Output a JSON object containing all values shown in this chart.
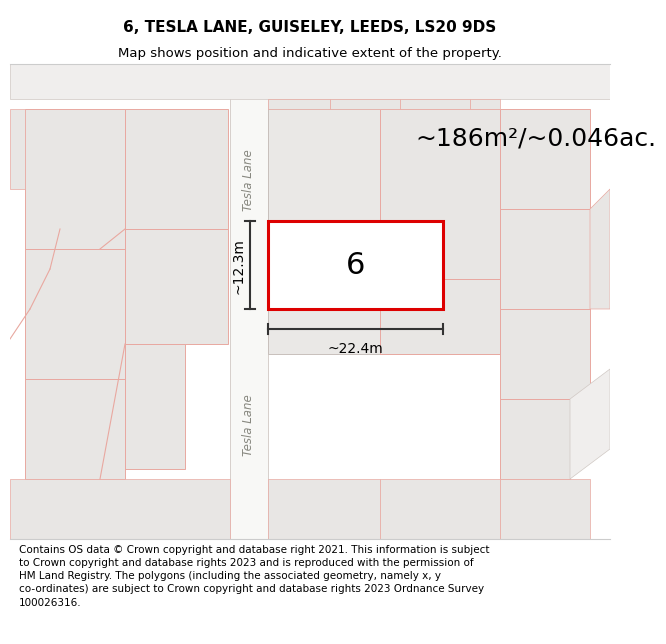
{
  "title_line1": "6, TESLA LANE, GUISELEY, LEEDS, LS20 9DS",
  "title_line2": "Map shows position and indicative extent of the property.",
  "area_label": "~186m²/~0.046ac.",
  "number_label": "6",
  "dim_width": "~22.4m",
  "dim_height": "~12.3m",
  "road_label_top": "Tesla Lane",
  "road_label_bottom": "Tesla Lane",
  "copyright_text": "Contains OS data © Crown copyright and database right 2021. This information is subject\nto Crown copyright and database rights 2023 and is reproduced with the permission of\nHM Land Registry. The polygons (including the associated geometry, namely x, y\nco-ordinates) are subject to Crown copyright and database rights 2023 Ordnance Survey\n100026316.",
  "bg_color": "#f2f0ee",
  "parcel_fill": "#e8e6e4",
  "parcel_line": "#e8a8a0",
  "road_fill": "#ffffff",
  "road_line": "#d0c8c0",
  "tesla_line_color": "#d0c8c4",
  "red_rect_color": "#dd0000",
  "dim_line_color": "#333333",
  "highlight_fill": "#e4e2e0",
  "title_fontsize": 11,
  "subtitle_fontsize": 9.5,
  "area_fontsize": 18,
  "number_fontsize": 22,
  "dim_fontsize": 10,
  "road_fontsize": 8.5,
  "copyright_fontsize": 7.5
}
